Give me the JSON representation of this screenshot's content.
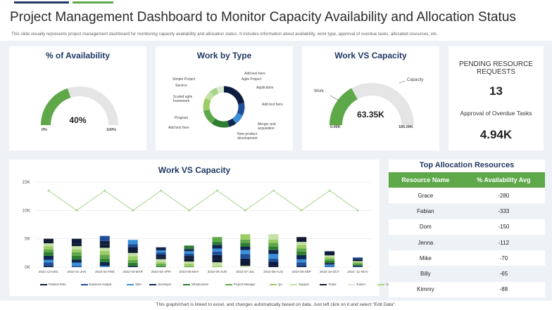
{
  "header": {
    "title": "Project Management Dashboard to Monitor Capacity Availability and Allocation Status",
    "subtitle": "This slide visually represents project management dashboard for monitoring capacity availability and allocation status. It includes information about  availability, work type, approval of overdue tasks, allocated resources, etc."
  },
  "availability": {
    "title": "% of Availability",
    "value_label": "40%",
    "min_label": "0%",
    "max_label": "100%",
    "fraction": 0.4
  },
  "work_by_type": {
    "title": "Work by Type",
    "labels_left": [
      "Simple Project",
      "Service",
      "Scaled agile framework",
      "Program",
      "Add text here"
    ],
    "labels_right": [
      "Add text here",
      "Agile Project",
      "Application",
      "Add text here",
      "Merger and acquisition",
      "New product development"
    ]
  },
  "work_vs_capacity_gauge": {
    "title": "Work VS Capacity",
    "value_label": "63.35K",
    "min_label": "0.00K",
    "max_label": "185.00K",
    "work_label": "Work",
    "capacity_label": "Capacity",
    "fraction": 0.34
  },
  "pending": {
    "title": "PENDING RESOURCE REQUESTS",
    "count": "13",
    "approval_label": "Approval of Overdue Tasks",
    "approval_value": "4.94K"
  },
  "top_allocation": {
    "title": "Top Allocation Resources",
    "columns": [
      "Resource Name",
      "% Availability Avg"
    ],
    "rows": [
      [
        "Grace",
        "-280"
      ],
      [
        "Fabian",
        "-333"
      ],
      [
        "Dom",
        "-150"
      ],
      [
        "Jenna",
        "-112"
      ],
      [
        "Mike",
        "-70"
      ],
      [
        "Billy",
        "-65"
      ],
      [
        "Kimmy",
        "-88"
      ]
    ]
  },
  "chart_data": {
    "type": "bar",
    "title": "Work VS Capacity",
    "categories": [
      "2021-12-DEC",
      "2022-01-JAN",
      "2022-02-FEB",
      "2022-03-MAR",
      "2022-04-APR",
      "2022-05-MAY",
      "2022-06-JUN",
      "2022-07-JUL",
      "2022-08-AUG",
      "2022-09-SEP",
      "2022-10-OCT",
      "2022 -11-NOV"
    ],
    "y_ticks": [
      "0K",
      "5K",
      "10K",
      "15K"
    ],
    "ylim": [
      0,
      15000
    ],
    "stacked_totals": [
      5000,
      5000,
      5500,
      4800,
      3500,
      3800,
      5300,
      5800,
      5800,
      5300,
      2800,
      1700
    ],
    "capacity_line": [
      13500,
      10000,
      13500,
      10000,
      13500,
      10000,
      13500,
      10000,
      13500,
      10000,
      13500,
      10000
    ],
    "legend": [
      "Position Role",
      "Business Analyst",
      "DBA",
      "Developer",
      "Infrastructure",
      "Project Manager",
      "QA",
      "Support",
      "Tester",
      "Trainer",
      "Capacity"
    ],
    "colors": [
      "#0d1b3e",
      "#1f4e99",
      "#3a8fd8",
      "#10254f",
      "#2e7d32",
      "#5ea84a",
      "#9ccc65",
      "#c5e1a5",
      "#0f1a33",
      "#d9ead3",
      "#a8d58a"
    ]
  },
  "footer": "This graph/chart is linked to excel, and changes automatically based on data. Just left click on it and select \"Edit Data\"."
}
